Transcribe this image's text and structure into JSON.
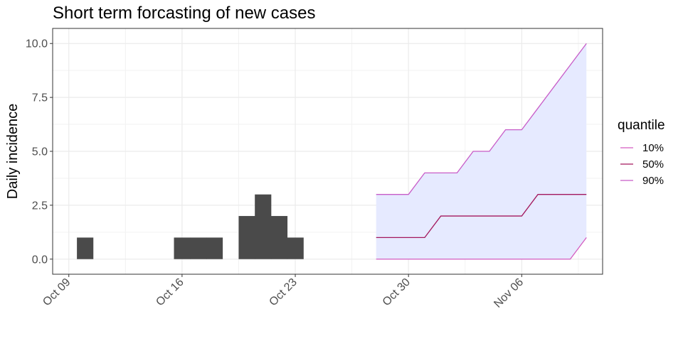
{
  "chart_data": {
    "type": "bar+line",
    "title": "Short term forcasting of new cases",
    "ylabel": "Daily incidence",
    "xlabel": "",
    "xlim": [
      "2020-10-08",
      "2020-11-11"
    ],
    "ylim": [
      -0.7,
      10.7
    ],
    "y_ticks": [
      {
        "value": 0,
        "label": "0.0"
      },
      {
        "value": 2.5,
        "label": "2.5"
      },
      {
        "value": 5,
        "label": "5.0"
      },
      {
        "value": 7.5,
        "label": "7.5"
      },
      {
        "value": 10,
        "label": "10.0"
      }
    ],
    "x_ticks": [
      {
        "date": "2020-10-09",
        "label": "Oct 09"
      },
      {
        "date": "2020-10-16",
        "label": "Oct 16"
      },
      {
        "date": "2020-10-23",
        "label": "Oct 23"
      },
      {
        "date": "2020-10-30",
        "label": "Oct 30"
      },
      {
        "date": "2020-11-06",
        "label": "Nov 06"
      }
    ],
    "grid": true,
    "incidence": {
      "dates": [
        "2020-10-10",
        "2020-10-16",
        "2020-10-17",
        "2020-10-18",
        "2020-10-20",
        "2020-10-21",
        "2020-10-22",
        "2020-10-23"
      ],
      "values": [
        1,
        1,
        1,
        1,
        2,
        3,
        2,
        1
      ],
      "color": "#4a4a4a"
    },
    "forecast": {
      "dates": [
        "2020-10-28",
        "2020-10-29",
        "2020-10-30",
        "2020-10-31",
        "2020-11-01",
        "2020-11-02",
        "2020-11-03",
        "2020-11-04",
        "2020-11-05",
        "2020-11-06",
        "2020-11-07",
        "2020-11-08",
        "2020-11-09",
        "2020-11-10"
      ],
      "ribbon_color": "#e6eaff",
      "series": [
        {
          "name": "10%",
          "color": "#d45cc0",
          "values": [
            0,
            0,
            0,
            0,
            0,
            0,
            0,
            0,
            0,
            0,
            0,
            0,
            0,
            1
          ]
        },
        {
          "name": "50%",
          "color": "#a3185e",
          "values": [
            1,
            1,
            1,
            1,
            2,
            2,
            2,
            2,
            2,
            2,
            3,
            3,
            3,
            3
          ]
        },
        {
          "name": "90%",
          "color": "#c85cc8",
          "values": [
            3,
            3,
            3,
            4,
            4,
            4,
            5,
            5,
            6,
            6,
            7,
            8,
            9,
            10
          ]
        }
      ]
    },
    "legend": {
      "title": "quantile",
      "position": "right"
    }
  }
}
